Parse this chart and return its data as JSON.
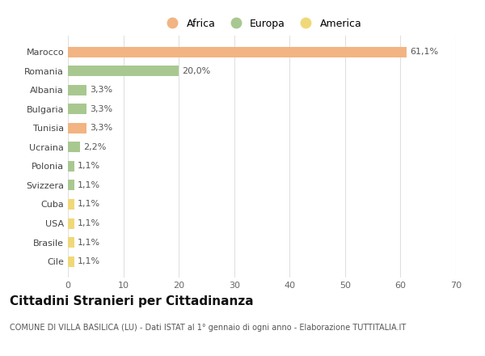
{
  "categories": [
    "Marocco",
    "Romania",
    "Albania",
    "Bulgaria",
    "Tunisia",
    "Ucraina",
    "Polonia",
    "Svizzera",
    "Cuba",
    "USA",
    "Brasile",
    "Cile"
  ],
  "values": [
    61.1,
    20.0,
    3.3,
    3.3,
    3.3,
    2.2,
    1.1,
    1.1,
    1.1,
    1.1,
    1.1,
    1.1
  ],
  "labels": [
    "61,1%",
    "20,0%",
    "3,3%",
    "3,3%",
    "3,3%",
    "2,2%",
    "1,1%",
    "1,1%",
    "1,1%",
    "1,1%",
    "1,1%",
    "1,1%"
  ],
  "colors": [
    "#f2b482",
    "#a8c890",
    "#a8c890",
    "#a8c890",
    "#f2b482",
    "#a8c890",
    "#a8c890",
    "#a8c890",
    "#f0d878",
    "#f0d878",
    "#f0d878",
    "#f0d878"
  ],
  "legend_labels": [
    "Africa",
    "Europa",
    "America"
  ],
  "legend_colors": [
    "#f2b482",
    "#a8c890",
    "#f0d878"
  ],
  "title": "Cittadini Stranieri per Cittadinanza",
  "subtitle": "COMUNE DI VILLA BASILICA (LU) - Dati ISTAT al 1° gennaio di ogni anno - Elaborazione TUTTITALIA.IT",
  "xlim": [
    0,
    70
  ],
  "xticks": [
    0,
    10,
    20,
    30,
    40,
    50,
    60,
    70
  ],
  "bg_color": "#ffffff",
  "plot_bg_color": "#ffffff",
  "grid_color": "#e0e0e0",
  "title_fontsize": 11,
  "subtitle_fontsize": 7,
  "label_fontsize": 8,
  "tick_fontsize": 8,
  "legend_fontsize": 9
}
